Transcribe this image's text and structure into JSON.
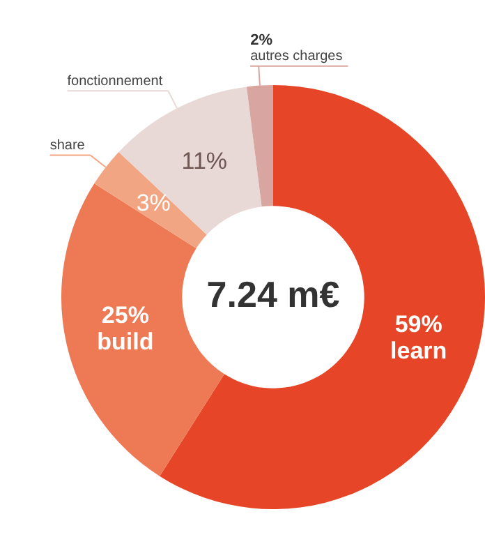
{
  "chart_data": {
    "type": "donut",
    "title": "7.24 m€",
    "categories": [
      "learn",
      "build",
      "share",
      "fonctionnement",
      "autres charges"
    ],
    "values": [
      59,
      25,
      3,
      11,
      2
    ],
    "value_labels": [
      "59%",
      "25%",
      "3%",
      "11%",
      "2%"
    ],
    "colors": [
      "#e64627",
      "#ee7a55",
      "#f2a583",
      "#e8d9d6",
      "#d9a5a0"
    ],
    "legend": false
  }
}
